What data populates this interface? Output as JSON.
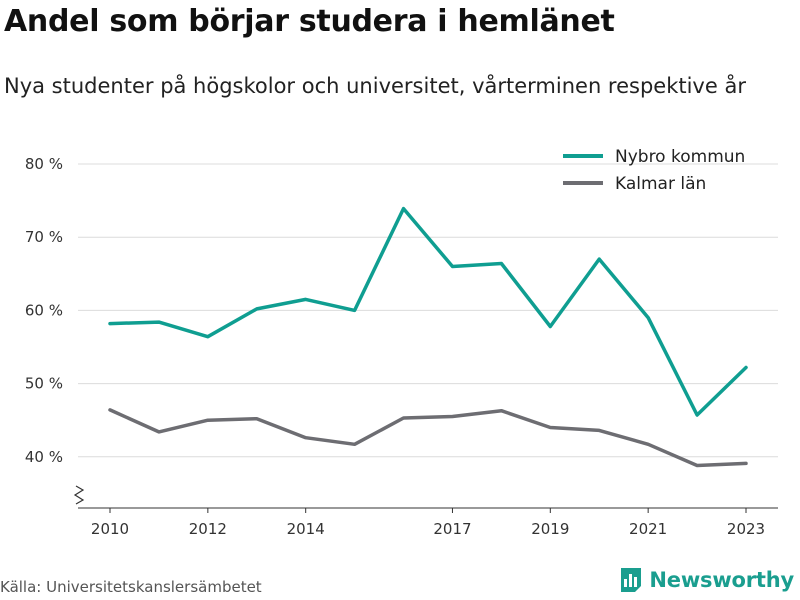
{
  "header": {
    "title": "Andel som börjar studera i hemlänet",
    "subtitle": "Nya studenter på högskolor och universitet, vårterminen respektive år"
  },
  "footer": {
    "source": "Källa: Universitetskanslersämbetet",
    "brand": "Newsworthy",
    "brand_logo_icon": "bar-chart-logo-icon"
  },
  "chart_data": {
    "type": "line",
    "x": [
      2010,
      2011,
      2012,
      2013,
      2014,
      2015,
      2016,
      2017,
      2018,
      2019,
      2020,
      2021,
      2022,
      2023
    ],
    "x_ticks": [
      2010,
      2012,
      2014,
      2017,
      2019,
      2021,
      2023
    ],
    "y_ticks": [
      40,
      50,
      60,
      70,
      80
    ],
    "y_tick_labels": [
      "40 %",
      "50 %",
      "60 %",
      "70 %",
      "80 %"
    ],
    "ylim": [
      33,
      80
    ],
    "y_axis_break": true,
    "grid": true,
    "legend_position": "top-right",
    "series": [
      {
        "name": "Nybro kommun",
        "color": "#0f9e91",
        "values": [
          58.2,
          58.4,
          56.4,
          60.2,
          61.5,
          60.0,
          73.9,
          66.0,
          66.4,
          57.8,
          67.0,
          59.0,
          45.7,
          52.2
        ]
      },
      {
        "name": "Kalmar län",
        "color": "#6d6d72",
        "values": [
          46.4,
          43.4,
          45.0,
          45.2,
          42.6,
          41.7,
          45.3,
          45.5,
          46.3,
          44.0,
          43.6,
          41.7,
          38.8,
          39.1
        ]
      }
    ]
  }
}
